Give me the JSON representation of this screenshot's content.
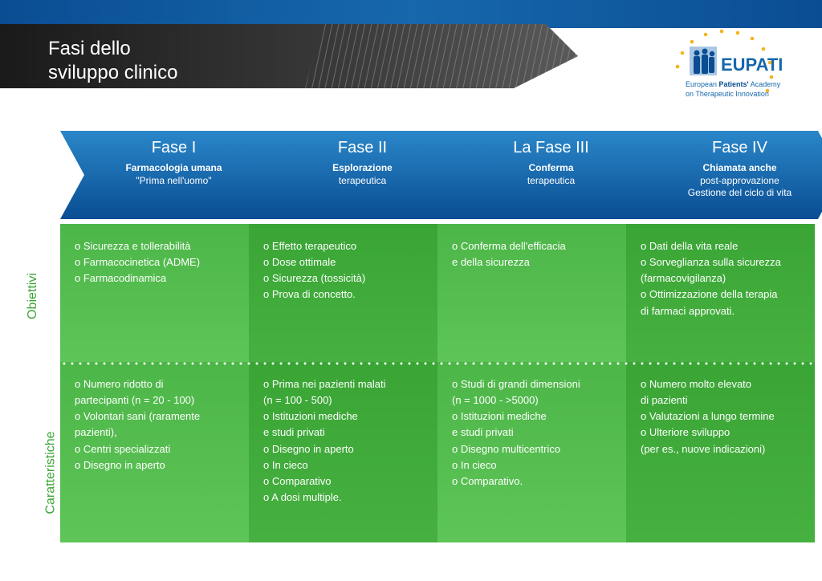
{
  "header": {
    "title_line1": "Fasi dello",
    "title_line2": "sviluppo clinico"
  },
  "logo": {
    "name": "EUPATI",
    "sub1_a": "European ",
    "sub1_b": "Patients'",
    "sub1_c": " Academy",
    "sub2": "on Therapeutic Innovation",
    "star_color": "#f3b51e",
    "name_color": "#1767ad",
    "icon_bg": "#a9c7e3",
    "icon_fig": "#0a4d93"
  },
  "colors": {
    "blue_light": "#2a87c9",
    "blue_dark": "#0a4d93",
    "header_dark_a": "#1a1a1a",
    "header_dark_b": "#4a4a4a",
    "green_a": "#3aa535",
    "green_b": "#68c55d",
    "side_obj": "#3aa535",
    "side_car": "#3aa535",
    "text_white": "#ffffff"
  },
  "phases": [
    {
      "title": "Fase I",
      "sub": "Farmacologia umana",
      "sub2": "\"Prima nell'uomo\""
    },
    {
      "title": "Fase II",
      "sub": "Esplorazione",
      "sub2": "terapeutica"
    },
    {
      "title": "La Fase III",
      "sub": "Conferma",
      "sub2": "terapeutica"
    },
    {
      "title": "Fase IV",
      "sub": "Chiamata anche",
      "sub2": "post-approvazione\nGestione del ciclo di vita"
    }
  ],
  "side_labels": {
    "objectives": "Obiettivi",
    "characteristics": "Caratteristiche"
  },
  "objectives": [
    [
      "Sicurezza e tollerabilità",
      "Farmacocinetica (ADME)",
      "Farmacodinamica"
    ],
    [
      "Effetto terapeutico",
      "Dose ottimale",
      "Sicurezza (tossicità)",
      "Prova di concetto."
    ],
    [
      "Conferma dell'efficacia",
      "|e della sicurezza"
    ],
    [
      "Dati della vita reale",
      "Sorveglianza sulla sicurezza",
      "|(farmacovigilanza)",
      "Ottimizzazione della terapia",
      "|di farmaci approvati."
    ]
  ],
  "characteristics": [
    [
      "Numero ridotto di",
      "|partecipanti (n = 20 - 100)",
      "Volontari sani (raramente",
      "|pazienti),",
      "Centri specializzati",
      "Disegno in aperto"
    ],
    [
      "Prima nei pazienti malati",
      "|(n = 100 - 500)",
      "Istituzioni mediche",
      "|e studi privati",
      "Disegno in aperto",
      "In cieco",
      "Comparativo",
      "A dosi multiple."
    ],
    [
      "Studi di grandi dimensioni",
      "|(n = 1000 - >5000)",
      "Istituzioni mediche",
      "|e studi privati",
      "Disegno multicentrico",
      "In cieco",
      "Comparativo."
    ],
    [
      "Numero molto elevato",
      "|di pazienti",
      "Valutazioni a lungo termine",
      "Ulteriore sviluppo",
      "|(per es., nuove indicazioni)"
    ]
  ],
  "layout": {
    "phase_width": 235,
    "phase_arrow_indent": 30,
    "obj_row_height": 172,
    "char_row_height": 225
  }
}
